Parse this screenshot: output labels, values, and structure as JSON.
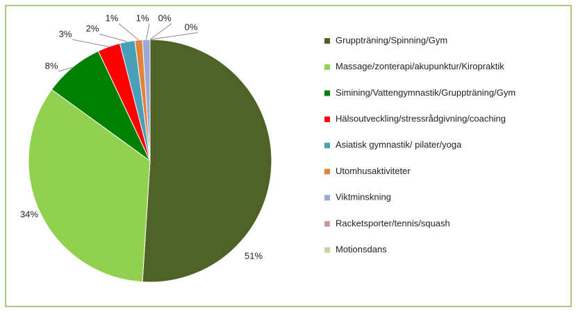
{
  "chart_data": {
    "type": "pie",
    "categories": [
      "Gruppträning/Spinning/Gym",
      "Massage/zonterapi/akupunktur/Kiropraktik",
      "Simining/Vattengymnastik/Gruppträning/Gym",
      "Hälsoutveckling/stressrådgivning/coaching",
      "Asiatisk gymnastik/ pilater/yoga",
      "Utomhusaktiviteter",
      "Viktminskning",
      "Racketsporter/tennis/squash",
      "Motionsdans"
    ],
    "values": [
      51,
      34,
      8,
      3,
      2,
      1,
      1,
      0,
      0
    ],
    "value_labels": [
      "51%",
      "34%",
      "8%",
      "3%",
      "2%",
      "1%",
      "1%",
      "0%",
      "0%"
    ],
    "colors": [
      "#4f6228",
      "#92d050",
      "#008000",
      "#ff0000",
      "#4a9fb8",
      "#e0843c",
      "#9aa9d8",
      "#d99694",
      "#c3d69b"
    ],
    "legend": "right"
  }
}
